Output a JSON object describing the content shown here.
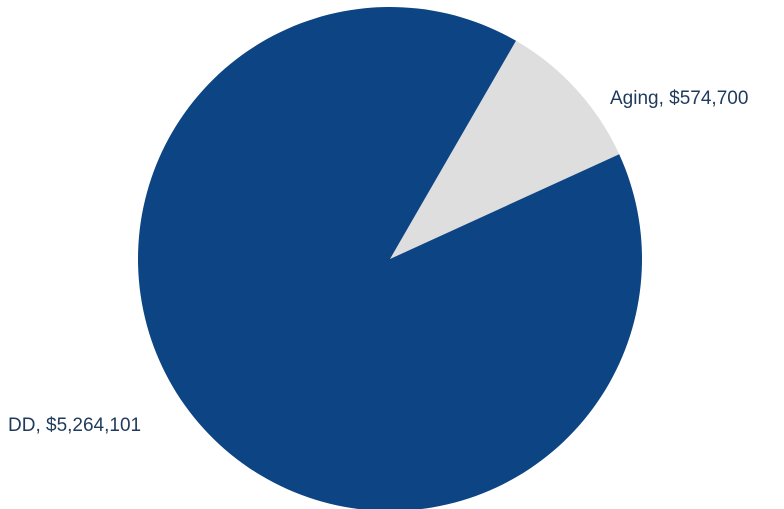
{
  "chart_data": {
    "type": "pie",
    "slices": [
      {
        "label": "Aging",
        "value": 574700,
        "display": "Aging, $574,700",
        "color": "#dedede"
      },
      {
        "label": "DD",
        "value": 5264101,
        "display": "DD, $5,264,101",
        "color": "#0d4483"
      }
    ],
    "title": "",
    "legend": "none"
  }
}
